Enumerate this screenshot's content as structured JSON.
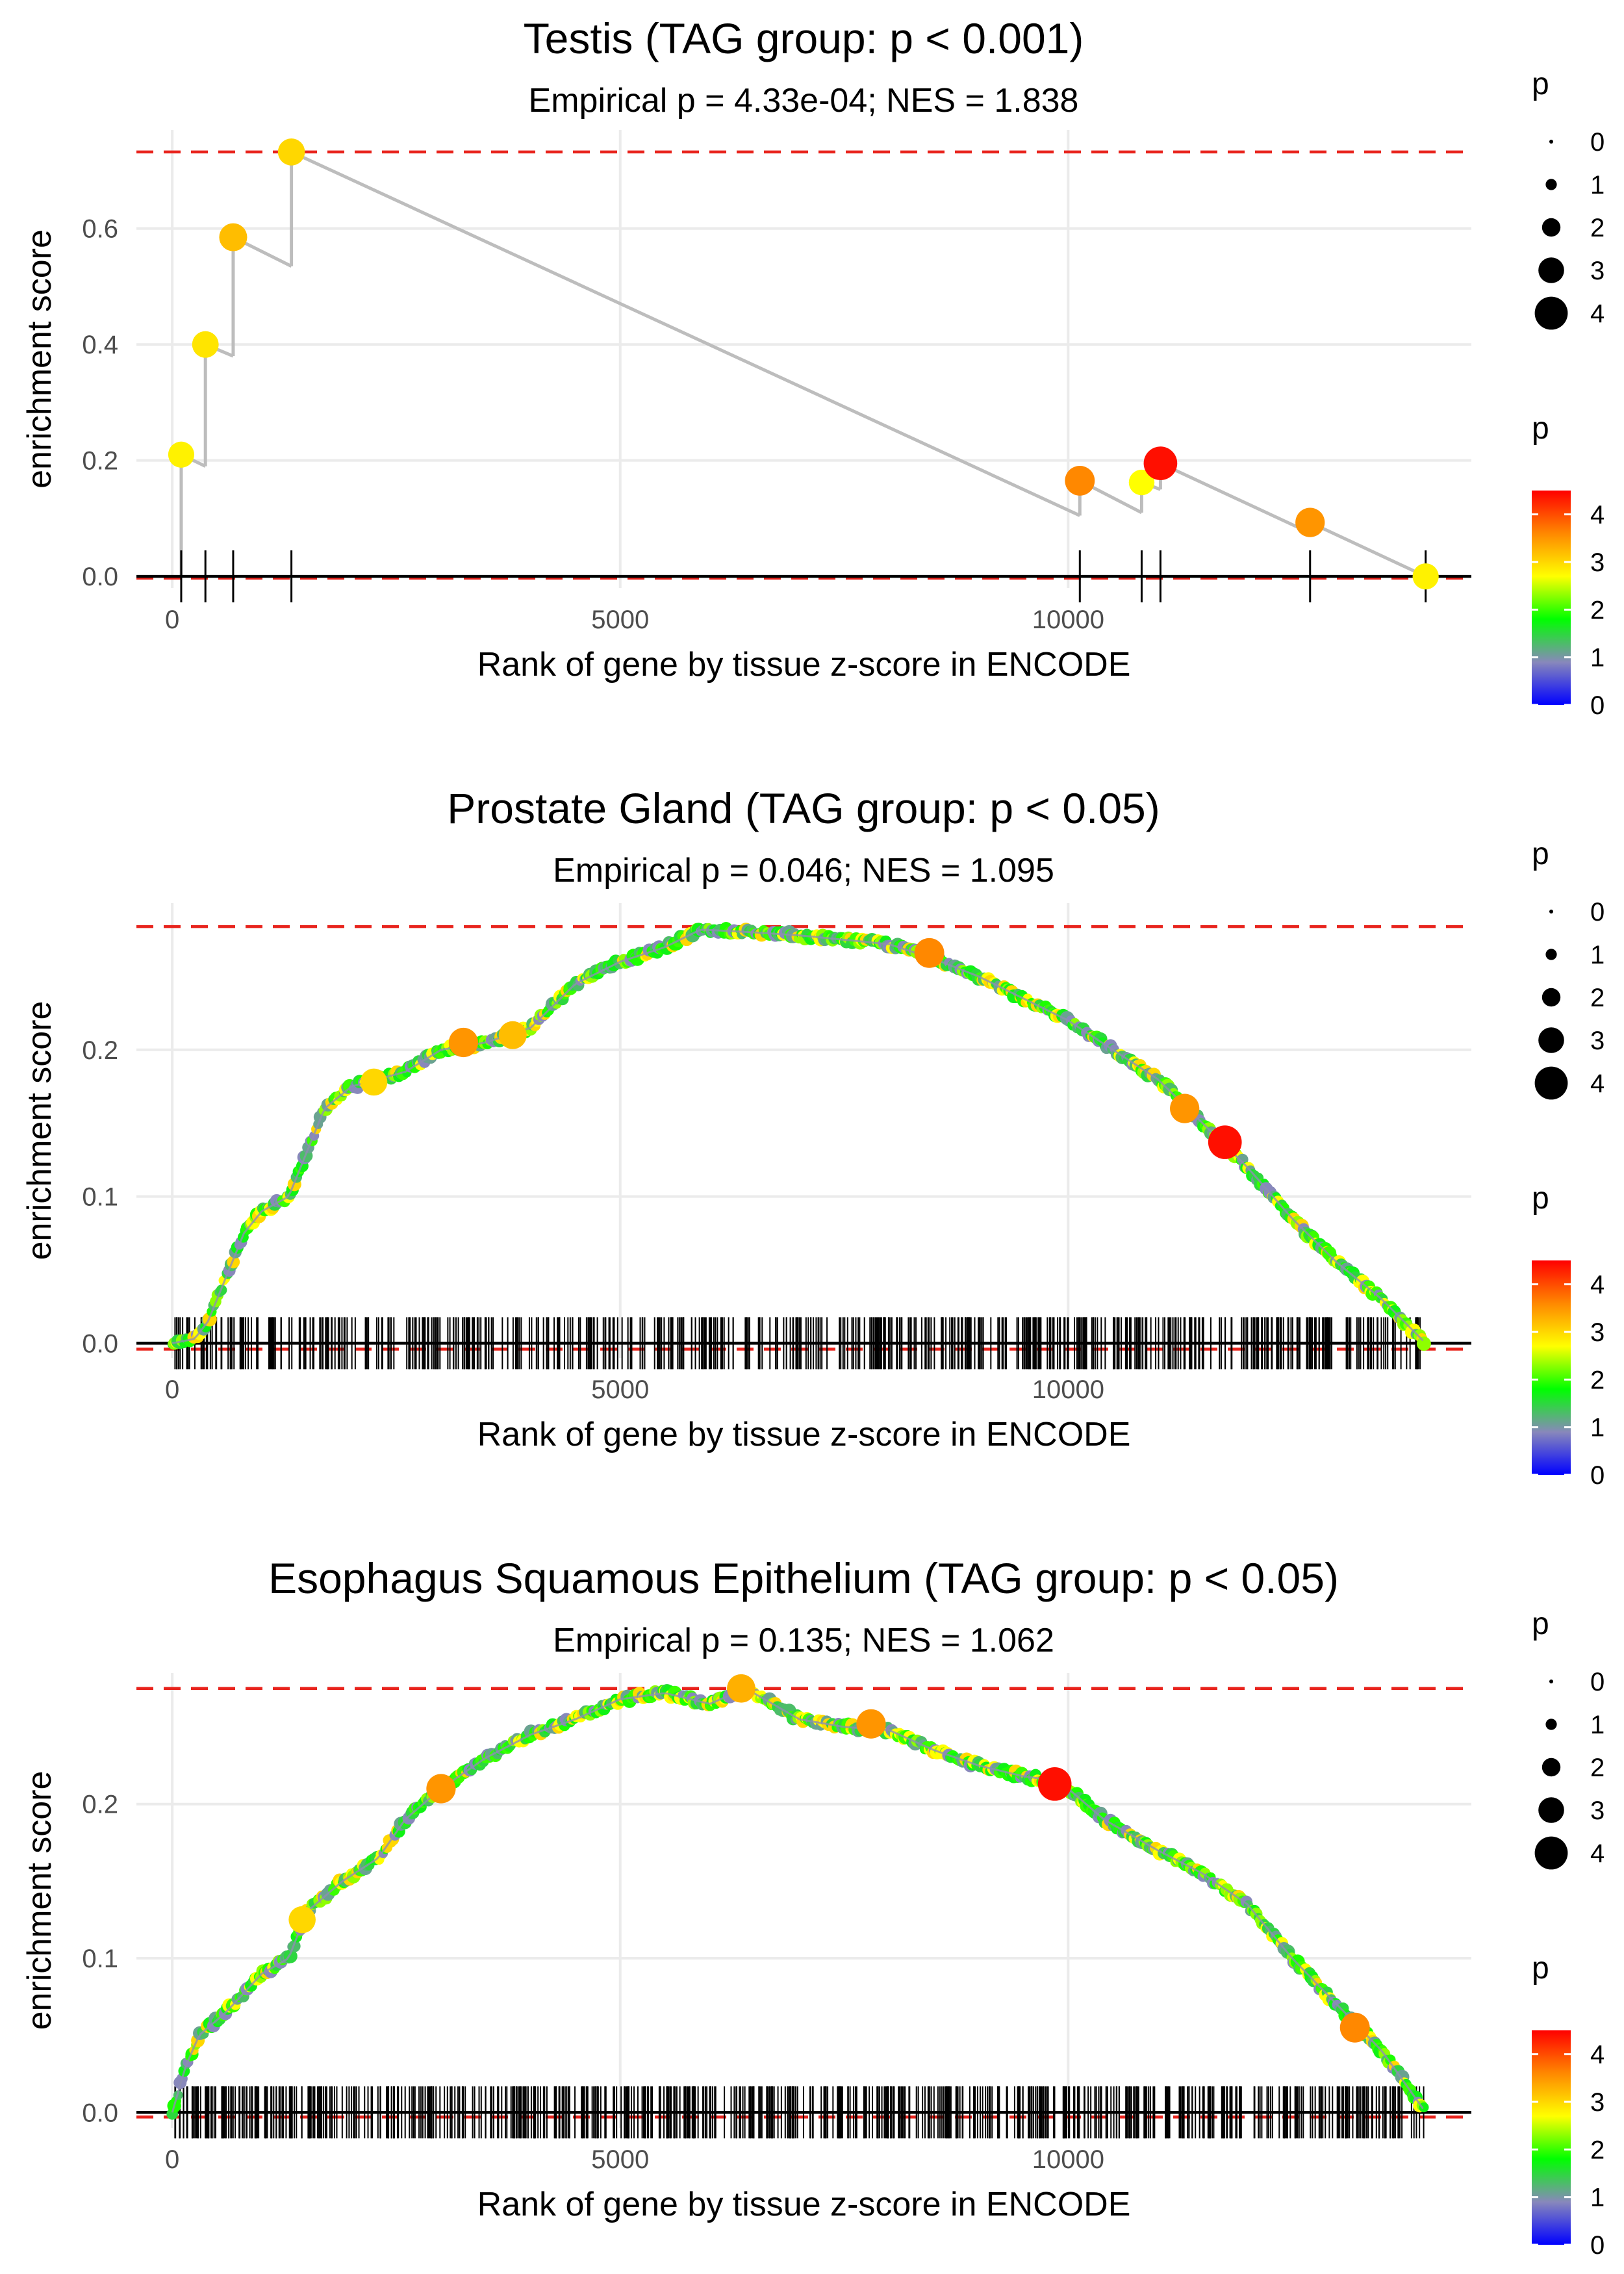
{
  "colors": {
    "ref_line": "#e8231c",
    "path_line": "#bdbdbd",
    "grid": "#ebebeb",
    "axis": "#000000",
    "gradient": [
      "#0000ff",
      "#8888bb",
      "#00ff00",
      "#ffff00",
      "#ff8800",
      "#ff0000"
    ]
  },
  "chart_data": [
    {
      "type": "scatter",
      "style": "sparse",
      "title": "Testis (TAG group: p < 0.001)",
      "subtitle": "Empirical p = 4.33e-04; NES = 1.838",
      "xlabel": "Rank of gene by tissue z-score in ENCODE",
      "ylabel": "enrichment score",
      "xlim": [
        -400,
        14500
      ],
      "ylim": [
        -0.02,
        0.77
      ],
      "xticks": [
        0,
        5000,
        10000
      ],
      "xtick_labels": [
        "0",
        "5000",
        "10000"
      ],
      "yticks": [
        0.0,
        0.2,
        0.4,
        0.6
      ],
      "ytick_labels": [
        "0.0",
        "0.2",
        "0.4",
        "0.6"
      ],
      "max_es": 0.732,
      "min_es": -0.003,
      "points": [
        {
          "x": 100,
          "y": 0.21,
          "p": 2.8
        },
        {
          "x": 370,
          "y": 0.4,
          "p": 2.9
        },
        {
          "x": 680,
          "y": 0.585,
          "p": 3.2
        },
        {
          "x": 1330,
          "y": 0.732,
          "p": 3.0
        },
        {
          "x": 10130,
          "y": 0.165,
          "p": 3.6
        },
        {
          "x": 10820,
          "y": 0.162,
          "p": 2.7
        },
        {
          "x": 11030,
          "y": 0.195,
          "p": 4.4
        },
        {
          "x": 12700,
          "y": 0.093,
          "p": 3.5
        },
        {
          "x": 13990,
          "y": 0.0,
          "p": 2.8
        }
      ],
      "legend_size": {
        "title": "p",
        "labels": [
          "0",
          "1",
          "2",
          "3",
          "4"
        ]
      },
      "legend_color": {
        "title": "p",
        "labels": [
          "4",
          "3",
          "2",
          "1",
          "0"
        ]
      }
    },
    {
      "type": "scatter",
      "style": "dense",
      "title": "Prostate Gland (TAG group: p < 0.05)",
      "subtitle": "Empirical p = 0.046; NES = 1.095",
      "xlabel": "Rank of gene by tissue z-score in ENCODE",
      "ylabel": "enrichment score",
      "xlim": [
        -400,
        14500
      ],
      "ylim": [
        -0.01,
        0.3
      ],
      "xticks": [
        0,
        5000,
        10000
      ],
      "xtick_labels": [
        "0",
        "5000",
        "10000"
      ],
      "yticks": [
        0.0,
        0.1,
        0.2
      ],
      "ytick_labels": [
        "0.0",
        "0.1",
        "0.2"
      ],
      "max_es": 0.284,
      "min_es": -0.004,
      "n_ticks": 600,
      "curve": [
        [
          0,
          0.0
        ],
        [
          250,
          0.003
        ],
        [
          400,
          0.015
        ],
        [
          600,
          0.045
        ],
        [
          800,
          0.075
        ],
        [
          1000,
          0.09
        ],
        [
          1300,
          0.1
        ],
        [
          1500,
          0.13
        ],
        [
          1700,
          0.16
        ],
        [
          2000,
          0.175
        ],
        [
          2300,
          0.18
        ],
        [
          2600,
          0.185
        ],
        [
          3000,
          0.2
        ],
        [
          3500,
          0.205
        ],
        [
          4000,
          0.215
        ],
        [
          4500,
          0.245
        ],
        [
          5000,
          0.26
        ],
        [
          5500,
          0.27
        ],
        [
          5900,
          0.282
        ],
        [
          6500,
          0.28
        ],
        [
          7000,
          0.278
        ],
        [
          7500,
          0.275
        ],
        [
          8000,
          0.272
        ],
        [
          8500,
          0.262
        ],
        [
          9000,
          0.25
        ],
        [
          9500,
          0.235
        ],
        [
          10000,
          0.22
        ],
        [
          10500,
          0.2
        ],
        [
          11000,
          0.18
        ],
        [
          11500,
          0.15
        ],
        [
          12000,
          0.12
        ],
        [
          12500,
          0.085
        ],
        [
          13000,
          0.055
        ],
        [
          13500,
          0.03
        ],
        [
          13990,
          0.0
        ]
      ],
      "highlights": [
        {
          "x": 2250,
          "y": 0.178,
          "p": 3.0
        },
        {
          "x": 3250,
          "y": 0.205,
          "p": 3.5
        },
        {
          "x": 3800,
          "y": 0.21,
          "p": 3.2
        },
        {
          "x": 8450,
          "y": 0.266,
          "p": 3.6
        },
        {
          "x": 11300,
          "y": 0.16,
          "p": 3.5
        },
        {
          "x": 11750,
          "y": 0.137,
          "p": 4.4
        }
      ],
      "legend_size": {
        "title": "p",
        "labels": [
          "0",
          "1",
          "2",
          "3",
          "4"
        ]
      },
      "legend_color": {
        "title": "p",
        "labels": [
          "4",
          "3",
          "2",
          "1",
          "0"
        ]
      }
    },
    {
      "type": "scatter",
      "style": "dense",
      "title": "Esophagus Squamous Epithelium (TAG group: p < 0.05)",
      "subtitle": "Empirical p = 0.135; NES = 1.062",
      "xlabel": "Rank of gene by tissue z-score in ENCODE",
      "ylabel": "enrichment score",
      "xlim": [
        -400,
        14500
      ],
      "ylim": [
        -0.01,
        0.285
      ],
      "xticks": [
        0,
        5000,
        10000
      ],
      "xtick_labels": [
        "0",
        "5000",
        "10000"
      ],
      "yticks": [
        0.0,
        0.1,
        0.2
      ],
      "ytick_labels": [
        "0.0",
        "0.1",
        "0.2"
      ],
      "max_es": 0.275,
      "min_es": -0.003,
      "n_ticks": 700,
      "curve": [
        [
          0,
          0.0
        ],
        [
          150,
          0.03
        ],
        [
          300,
          0.05
        ],
        [
          600,
          0.065
        ],
        [
          1000,
          0.09
        ],
        [
          1300,
          0.1
        ],
        [
          1500,
          0.13
        ],
        [
          1900,
          0.15
        ],
        [
          2300,
          0.165
        ],
        [
          2600,
          0.19
        ],
        [
          3000,
          0.21
        ],
        [
          3500,
          0.23
        ],
        [
          4000,
          0.245
        ],
        [
          4500,
          0.255
        ],
        [
          5000,
          0.268
        ],
        [
          5500,
          0.272
        ],
        [
          6000,
          0.265
        ],
        [
          6400,
          0.275
        ],
        [
          7000,
          0.255
        ],
        [
          7500,
          0.25
        ],
        [
          8000,
          0.248
        ],
        [
          8500,
          0.235
        ],
        [
          9000,
          0.225
        ],
        [
          9500,
          0.218
        ],
        [
          9900,
          0.215
        ],
        [
          10400,
          0.19
        ],
        [
          11000,
          0.17
        ],
        [
          11500,
          0.155
        ],
        [
          12000,
          0.135
        ],
        [
          12500,
          0.1
        ],
        [
          13000,
          0.07
        ],
        [
          13500,
          0.04
        ],
        [
          13990,
          0.0
        ]
      ],
      "highlights": [
        {
          "x": 1450,
          "y": 0.125,
          "p": 3.0
        },
        {
          "x": 3000,
          "y": 0.21,
          "p": 3.5
        },
        {
          "x": 6350,
          "y": 0.275,
          "p": 3.3
        },
        {
          "x": 7800,
          "y": 0.252,
          "p": 3.5
        },
        {
          "x": 9850,
          "y": 0.213,
          "p": 4.4
        },
        {
          "x": 13200,
          "y": 0.055,
          "p": 3.6
        }
      ],
      "legend_size": {
        "title": "p",
        "labels": [
          "0",
          "1",
          "2",
          "3",
          "4"
        ]
      },
      "legend_color": {
        "title": "p",
        "labels": [
          "4",
          "3",
          "2",
          "1",
          "0"
        ]
      }
    }
  ]
}
